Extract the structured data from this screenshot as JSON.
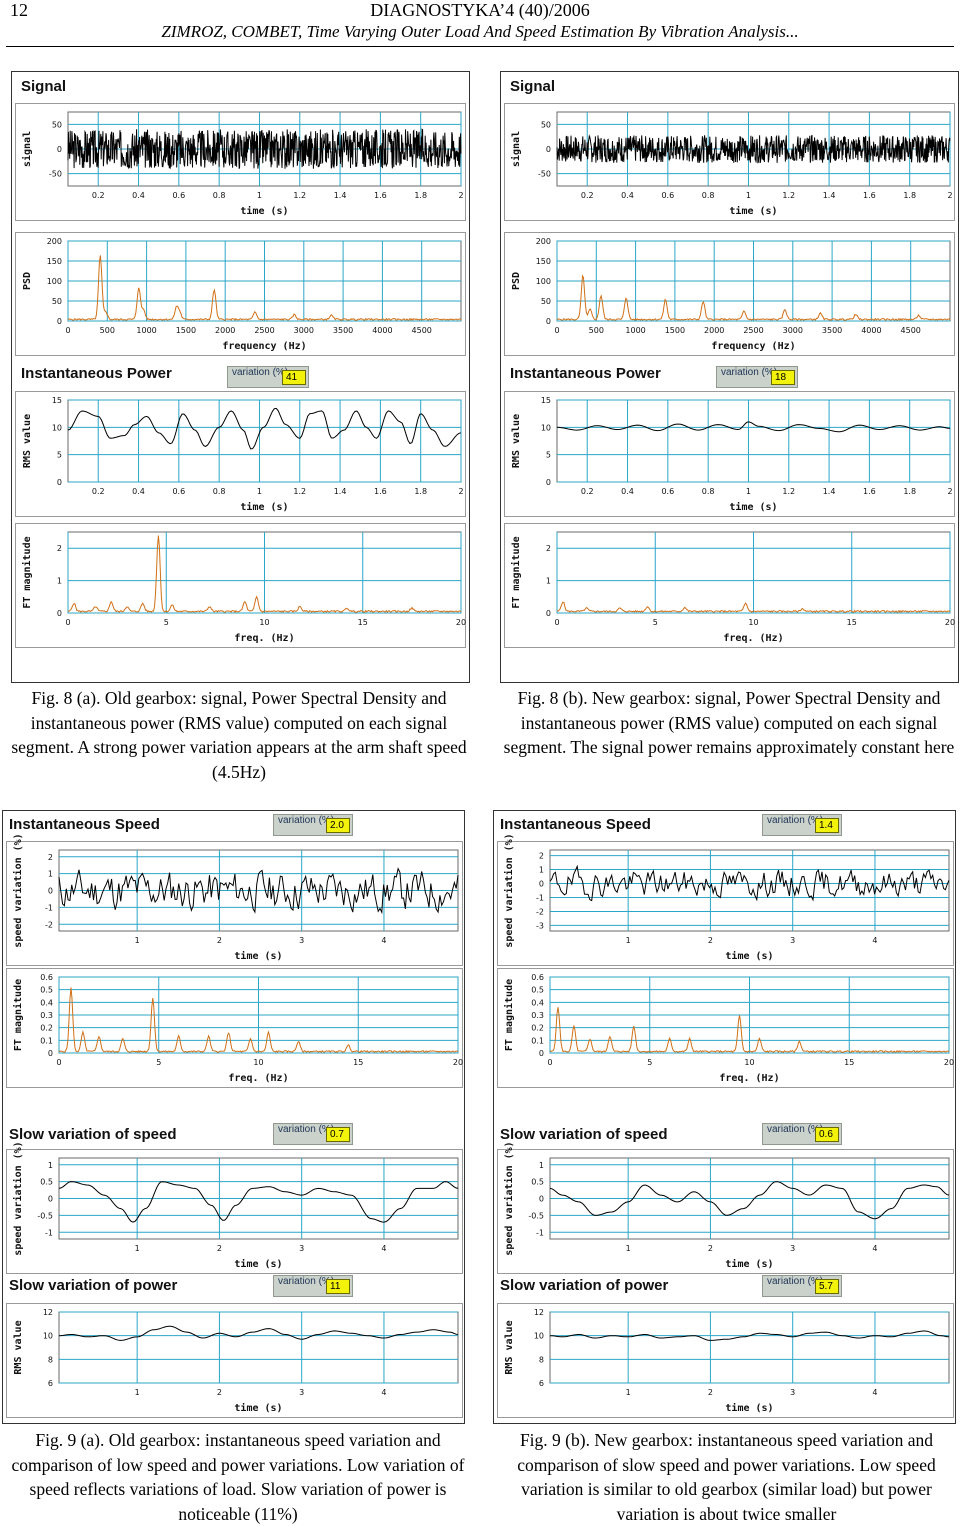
{
  "header": {
    "page_number": "12",
    "journal": "DIAGNOSTYKA’4 (40)/2006",
    "authors_title": "ZIMROZ, COMBET, Time Varying Outer Load And Speed Estimation By Vibration Analysis..."
  },
  "sections": {
    "signal": "Signal",
    "instantaneous_power": "Instantaneous Power",
    "instantaneous_speed": "Instantaneous Speed",
    "slow_variation_speed": "Slow variation of speed",
    "slow_variation_power": "Slow variation of power",
    "variation_label": "variation (%)"
  },
  "variation_values": {
    "fig8a_power": "41",
    "fig8b_power": "18",
    "fig9a_speed": "2.0",
    "fig9b_speed": "1.4",
    "fig9a_slow_speed": "0.7",
    "fig9b_slow_speed": "0.6",
    "fig9a_slow_power": "11",
    "fig9b_slow_power": "5.7"
  },
  "captions": {
    "fig8a": "Fig. 8 (a). Old gearbox: signal, Power Spectral Density and instantaneous power (RMS value) computed on each signal segment. A strong power variation appears at the arm shaft speed (4.5Hz)",
    "fig8b": "Fig. 8 (b). New gearbox: signal, Power Spectral Density and instantaneous power (RMS value) computed on each signal segment. The signal power remains approximately constant here",
    "fig9a": "Fig. 9 (a). Old gearbox: instantaneous speed variation and comparison of low speed and power variations. Low variation of speed reflects variations of load. Slow variation of power is noticeable (11%)",
    "fig9b": "Fig. 9 (b). New gearbox: instantaneous speed variation and comparison of slow speed and power variations. Low speed variation is similar to old gearbox (similar load) but power variation is about twice smaller"
  },
  "chart_data": [
    {
      "id": "8a_signal",
      "type": "line",
      "xlabel": "time (s)",
      "ylabel": "signal",
      "xlim": [
        0.05,
        2.0
      ],
      "ylim": [
        -75,
        75
      ],
      "xticks": [
        0.2,
        0.4,
        0.6,
        0.8,
        1,
        1.2,
        1.4,
        1.6,
        1.8,
        2
      ],
      "yticks": [
        50,
        0,
        -50
      ],
      "noise": {
        "amp": 40,
        "seed": 3
      },
      "color": "#000000"
    },
    {
      "id": "8a_psd",
      "type": "line",
      "xlabel": "frequency (Hz)",
      "ylabel": "PSD",
      "xlim": [
        0,
        5000
      ],
      "ylim": [
        0,
        200
      ],
      "xticks": [
        0,
        500,
        1000,
        1500,
        2000,
        2500,
        3000,
        3500,
        4000,
        4500
      ],
      "yticks": [
        200,
        150,
        100,
        50,
        0
      ],
      "peaks": [
        [
          410,
          160
        ],
        [
          480,
          20
        ],
        [
          900,
          80
        ],
        [
          960,
          25
        ],
        [
          1380,
          30
        ],
        [
          1420,
          18
        ],
        [
          1860,
          75
        ],
        [
          2380,
          18
        ],
        [
          2880,
          12
        ],
        [
          3350,
          10
        ]
      ],
      "color": "#d07018"
    },
    {
      "id": "8a_rms",
      "type": "line",
      "xlabel": "time (s)",
      "ylabel": "RMS value",
      "xlim": [
        0.05,
        2.0
      ],
      "ylim": [
        0,
        15
      ],
      "xticks": [
        0.2,
        0.4,
        0.6,
        0.8,
        1,
        1.2,
        1.4,
        1.6,
        1.8,
        2
      ],
      "yticks": [
        15,
        10,
        5,
        0
      ],
      "x": [
        0.05,
        0.12,
        0.2,
        0.26,
        0.33,
        0.38,
        0.44,
        0.5,
        0.56,
        0.62,
        0.68,
        0.73,
        0.8,
        0.86,
        0.92,
        0.96,
        1.02,
        1.08,
        1.13,
        1.2,
        1.25,
        1.31,
        1.36,
        1.42,
        1.48,
        1.53,
        1.58,
        1.64,
        1.7,
        1.75,
        1.8,
        1.86,
        1.92,
        2.0
      ],
      "y": [
        9.5,
        13,
        12,
        8,
        8.5,
        10.5,
        12,
        9,
        7,
        12.5,
        9.5,
        6.5,
        10,
        13,
        9.5,
        6,
        10,
        13.5,
        10.5,
        8,
        12.5,
        13,
        8,
        9.5,
        13,
        10,
        8,
        13,
        11,
        7,
        12.5,
        9.5,
        6.5,
        9
      ],
      "color": "#000000"
    },
    {
      "id": "8a_ft",
      "type": "line",
      "xlabel": "freq. (Hz)",
      "ylabel": "FT magnitude",
      "xlim": [
        0,
        20
      ],
      "ylim": [
        0,
        2.5
      ],
      "xticks": [
        0,
        5,
        10,
        15,
        20
      ],
      "yticks": [
        2,
        1,
        0
      ],
      "peaks": [
        [
          0.3,
          0.25
        ],
        [
          1.4,
          0.15
        ],
        [
          2.2,
          0.3
        ],
        [
          3.0,
          0.15
        ],
        [
          3.8,
          0.25
        ],
        [
          4.6,
          2.35
        ],
        [
          5.3,
          0.2
        ],
        [
          7.2,
          0.15
        ],
        [
          9.0,
          0.3
        ],
        [
          9.6,
          0.45
        ],
        [
          11.8,
          0.15
        ],
        [
          14.2,
          0.1
        ],
        [
          17.5,
          0.1
        ]
      ],
      "color": "#d07018"
    },
    {
      "id": "8b_signal",
      "type": "line",
      "xlabel": "time (s)",
      "ylabel": "signal",
      "xlim": [
        0.05,
        2.0
      ],
      "ylim": [
        -75,
        75
      ],
      "xticks": [
        0.2,
        0.4,
        0.6,
        0.8,
        1,
        1.2,
        1.4,
        1.6,
        1.8,
        2
      ],
      "yticks": [
        50,
        0,
        -50
      ],
      "noise": {
        "amp": 28,
        "seed": 7
      },
      "color": "#000000"
    },
    {
      "id": "8b_psd",
      "type": "line",
      "xlabel": "frequency (Hz)",
      "ylabel": "PSD",
      "xlim": [
        0,
        5000
      ],
      "ylim": [
        0,
        200
      ],
      "xticks": [
        0,
        500,
        1000,
        1500,
        2000,
        2500,
        3000,
        3500,
        4000,
        4500
      ],
      "yticks": [
        200,
        150,
        100,
        50,
        0
      ],
      "peaks": [
        [
          330,
          110
        ],
        [
          420,
          25
        ],
        [
          560,
          60
        ],
        [
          880,
          55
        ],
        [
          1380,
          50
        ],
        [
          1860,
          45
        ],
        [
          2380,
          20
        ],
        [
          2900,
          25
        ],
        [
          3350,
          15
        ],
        [
          3800,
          12
        ],
        [
          4600,
          10
        ]
      ],
      "color": "#d07018"
    },
    {
      "id": "8b_rms",
      "type": "line",
      "xlabel": "time (s)",
      "ylabel": "RMS value",
      "xlim": [
        0.05,
        2.0
      ],
      "ylim": [
        0,
        15
      ],
      "xticks": [
        0.2,
        0.4,
        0.6,
        0.8,
        1,
        1.2,
        1.4,
        1.6,
        1.8,
        2
      ],
      "yticks": [
        15,
        10,
        5,
        0
      ],
      "x": [
        0.05,
        0.15,
        0.25,
        0.35,
        0.45,
        0.55,
        0.65,
        0.75,
        0.85,
        0.95,
        1.0,
        1.05,
        1.15,
        1.25,
        1.35,
        1.45,
        1.55,
        1.65,
        1.75,
        1.85,
        1.95,
        2.0
      ],
      "y": [
        10,
        9.5,
        10.3,
        9.6,
        10.4,
        9.4,
        10.6,
        9.5,
        10.5,
        9.6,
        11,
        10.2,
        9.4,
        10.5,
        9.8,
        9.2,
        10.4,
        9.6,
        10.3,
        9.5,
        10.1,
        9.8
      ],
      "color": "#000000"
    },
    {
      "id": "8b_ft",
      "type": "line",
      "xlabel": "freq. (Hz)",
      "ylabel": "FT magnitude",
      "xlim": [
        0,
        20
      ],
      "ylim": [
        0,
        2.5
      ],
      "xticks": [
        0,
        5,
        10,
        15,
        20
      ],
      "yticks": [
        2,
        1,
        0
      ],
      "peaks": [
        [
          0.3,
          0.3
        ],
        [
          1.5,
          0.1
        ],
        [
          3.2,
          0.1
        ],
        [
          4.6,
          0.15
        ],
        [
          6.5,
          0.12
        ],
        [
          9.6,
          0.25
        ],
        [
          12.5,
          0.08
        ]
      ],
      "color": "#d07018"
    },
    {
      "id": "9a_speed",
      "type": "line",
      "xlabel": "time (s)",
      "ylabel": "speed variation (%)",
      "xlim": [
        0.05,
        4.9
      ],
      "ylim": [
        -2.4,
        2.4
      ],
      "xticks": [
        1,
        2,
        3,
        4
      ],
      "yticks": [
        2,
        1,
        0,
        -1,
        -2
      ],
      "noise": {
        "amp": 1.8,
        "seed": 11,
        "smooth": 8
      },
      "color": "#000000"
    },
    {
      "id": "9a_ft",
      "type": "line",
      "xlabel": "freq. (Hz)",
      "ylabel": "FT magnitude",
      "xlim": [
        0,
        20
      ],
      "ylim": [
        0,
        0.6
      ],
      "xticks": [
        0,
        5,
        10,
        15,
        20
      ],
      "yticks": [
        0.6,
        0.5,
        0.4,
        0.3,
        0.2,
        0.1,
        0
      ],
      "peaks": [
        [
          0.6,
          0.5
        ],
        [
          1.2,
          0.15
        ],
        [
          2.0,
          0.12
        ],
        [
          3.2,
          0.1
        ],
        [
          4.7,
          0.42
        ],
        [
          6.0,
          0.12
        ],
        [
          7.5,
          0.12
        ],
        [
          8.5,
          0.15
        ],
        [
          9.6,
          0.1
        ],
        [
          10.5,
          0.15
        ],
        [
          12.0,
          0.08
        ],
        [
          14.5,
          0.05
        ]
      ],
      "color": "#d07018"
    },
    {
      "id": "9b_speed",
      "type": "line",
      "xlabel": "time (s)",
      "ylabel": "speed variation (%)",
      "xlim": [
        0.05,
        4.9
      ],
      "ylim": [
        -3.4,
        2.4
      ],
      "xticks": [
        1,
        2,
        3,
        4
      ],
      "yticks": [
        2,
        1,
        0,
        -1,
        -2,
        -3
      ],
      "noise": {
        "amp": 1.5,
        "seed": 19,
        "smooth": 8
      },
      "color": "#000000"
    },
    {
      "id": "9b_ft",
      "type": "line",
      "xlabel": "freq. (Hz)",
      "ylabel": "FT magnitude",
      "xlim": [
        0,
        20
      ],
      "ylim": [
        0,
        0.6
      ],
      "xticks": [
        0,
        5,
        10,
        15,
        20
      ],
      "yticks": [
        0.6,
        0.5,
        0.4,
        0.3,
        0.2,
        0.1,
        0
      ],
      "peaks": [
        [
          0.4,
          0.35
        ],
        [
          1.2,
          0.2
        ],
        [
          2.0,
          0.1
        ],
        [
          3.0,
          0.12
        ],
        [
          4.2,
          0.2
        ],
        [
          6.0,
          0.1
        ],
        [
          7.0,
          0.1
        ],
        [
          9.5,
          0.28
        ],
        [
          10.5,
          0.1
        ],
        [
          12.5,
          0.08
        ]
      ],
      "color": "#d07018"
    },
    {
      "id": "9a_slow_speed",
      "type": "line",
      "xlabel": "time (s)",
      "ylabel": "speed variation (%)",
      "xlim": [
        0.05,
        4.9
      ],
      "ylim": [
        -1.2,
        1.2
      ],
      "xticks": [
        1,
        2,
        3,
        4
      ],
      "yticks": [
        1,
        0.5,
        0,
        -0.5,
        -1
      ],
      "x": [
        0.05,
        0.2,
        0.4,
        0.6,
        0.8,
        0.95,
        1.1,
        1.3,
        1.5,
        1.7,
        1.9,
        2.05,
        2.2,
        2.4,
        2.6,
        2.8,
        3.0,
        3.2,
        3.4,
        3.6,
        3.85,
        4.0,
        4.2,
        4.4,
        4.6,
        4.75,
        4.9
      ],
      "y": [
        0.3,
        0.5,
        0.4,
        0.1,
        -0.3,
        -0.7,
        -0.3,
        0.5,
        0.4,
        0.3,
        -0.2,
        -0.65,
        -0.2,
        0.3,
        0.35,
        0.2,
        0.1,
        0.3,
        0.2,
        0.1,
        -0.6,
        -0.7,
        -0.3,
        0.3,
        0.3,
        0.5,
        0.3
      ],
      "color": "#000000"
    },
    {
      "id": "9b_slow_speed",
      "type": "line",
      "xlabel": "time (s)",
      "ylabel": "speed variation (%)",
      "xlim": [
        0.05,
        4.9
      ],
      "ylim": [
        -1.2,
        1.2
      ],
      "xticks": [
        1,
        2,
        3,
        4
      ],
      "yticks": [
        1,
        0.5,
        0,
        -0.5,
        -1
      ],
      "x": [
        0.05,
        0.2,
        0.4,
        0.6,
        0.8,
        1.0,
        1.2,
        1.4,
        1.6,
        1.8,
        2.0,
        2.2,
        2.4,
        2.6,
        2.8,
        3.0,
        3.2,
        3.4,
        3.6,
        3.8,
        4.0,
        4.2,
        4.4,
        4.6,
        4.75,
        4.9
      ],
      "y": [
        0.3,
        0.1,
        -0.1,
        -0.5,
        -0.4,
        -0.1,
        0.4,
        0.1,
        -0.1,
        0.2,
        -0.1,
        -0.5,
        -0.3,
        0.1,
        0.5,
        0.3,
        0.1,
        0.4,
        0.3,
        -0.4,
        -0.6,
        -0.3,
        0.3,
        0.4,
        0.35,
        0.1
      ],
      "color": "#000000"
    },
    {
      "id": "9a_slow_power",
      "type": "line",
      "xlabel": "time (s)",
      "ylabel": "RMS value",
      "xlim": [
        0.05,
        4.9
      ],
      "ylim": [
        6,
        12
      ],
      "xticks": [
        1,
        2,
        3,
        4
      ],
      "yticks": [
        12,
        10,
        8,
        6
      ],
      "x": [
        0.05,
        0.2,
        0.4,
        0.6,
        0.8,
        1.0,
        1.2,
        1.4,
        1.6,
        1.8,
        2.0,
        2.2,
        2.4,
        2.6,
        2.8,
        3.0,
        3.2,
        3.4,
        3.6,
        3.8,
        4.0,
        4.2,
        4.4,
        4.6,
        4.8,
        4.9
      ],
      "y": [
        10,
        10.1,
        9.9,
        10,
        9.6,
        9.9,
        10.5,
        10.8,
        10.3,
        9.8,
        10.2,
        9.9,
        10.3,
        10.6,
        10.1,
        9.7,
        10.1,
        10.4,
        10.2,
        10,
        9.8,
        10.1,
        10.3,
        10.5,
        10.3,
        10.1
      ],
      "color": "#000000"
    },
    {
      "id": "9b_slow_power",
      "type": "line",
      "xlabel": "time (s)",
      "ylabel": "RMS value",
      "xlim": [
        0.05,
        4.9
      ],
      "ylim": [
        6,
        12
      ],
      "xticks": [
        1,
        2,
        3,
        4
      ],
      "yticks": [
        12,
        10,
        8,
        6
      ],
      "x": [
        0.05,
        0.2,
        0.4,
        0.6,
        0.8,
        1.0,
        1.2,
        1.4,
        1.6,
        1.8,
        2.0,
        2.2,
        2.4,
        2.6,
        2.8,
        3.0,
        3.2,
        3.4,
        3.6,
        3.8,
        4.0,
        4.2,
        4.4,
        4.6,
        4.8,
        4.9
      ],
      "y": [
        10,
        9.9,
        10.1,
        9.8,
        10,
        9.9,
        10.1,
        9.8,
        9.9,
        10,
        9.6,
        9.7,
        9.9,
        10.2,
        10.1,
        9.9,
        10.2,
        10.3,
        10,
        9.8,
        10,
        9.9,
        10.2,
        10.4,
        10,
        9.9
      ],
      "color": "#000000"
    }
  ]
}
